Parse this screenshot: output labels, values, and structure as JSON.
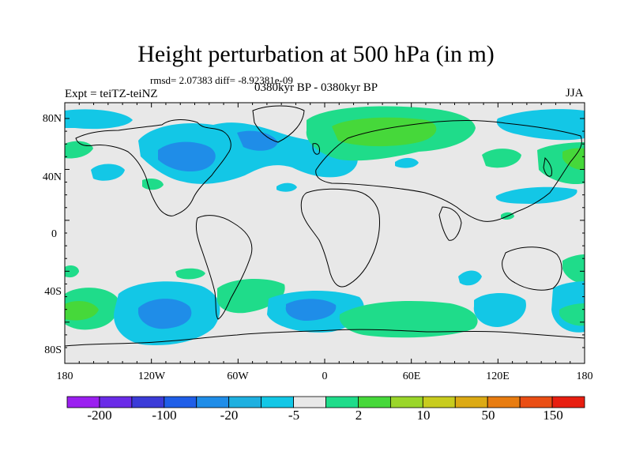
{
  "title": "Height perturbation at 500 hPa (in m)",
  "stats": "rmsd= 2.07383 diff= -8.92381e-09",
  "left_label": "Expt = teiTZ-teiNZ",
  "center_label": "0380kyr BP - 0380kyr BP",
  "right_label": "JJA",
  "lat_labels": [
    "80N",
    "40N",
    "0",
    "40S",
    "80S"
  ],
  "lon_labels": [
    "180",
    "120W",
    "60W",
    "0",
    "60E",
    "120E",
    "180"
  ],
  "colorbar": {
    "colors": [
      "#9b1ff0",
      "#6a2be8",
      "#3b3bd8",
      "#1f5ee8",
      "#1f8de8",
      "#1eb0e0",
      "#13c7e6",
      "#e8e8e8",
      "#1fdc8a",
      "#46d83a",
      "#9ad62a",
      "#c8cc1e",
      "#dcaa14",
      "#e87c10",
      "#ea4e14",
      "#e81e10"
    ],
    "labels": [
      "-200",
      "-100",
      "-20",
      "-5",
      "2",
      "10",
      "50",
      "150"
    ]
  },
  "colors": {
    "ocean_background": "#e8e8e8",
    "negative_medium": "#13c7e6",
    "negative_strong": "#1f8de8",
    "positive_weak": "#1fdc8a",
    "positive_medium": "#46d83a",
    "positive_strong": "#9ad62a",
    "coastline": "#000000"
  }
}
